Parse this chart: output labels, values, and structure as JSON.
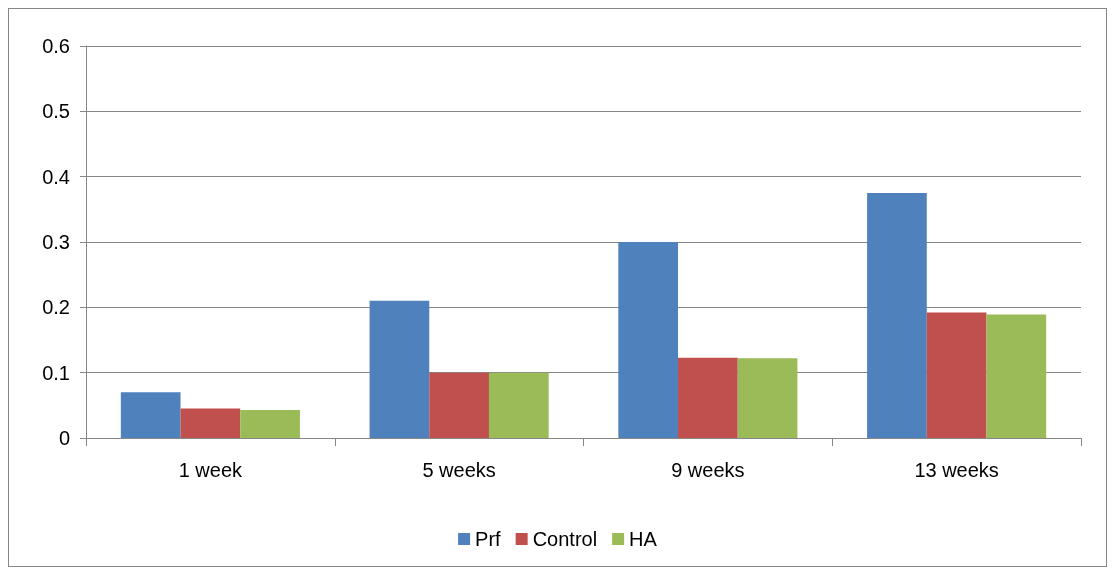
{
  "chart_data": {
    "type": "bar",
    "categories": [
      "1 week",
      "5 weeks",
      "9 weeks",
      "13 weeks"
    ],
    "series": [
      {
        "name": "Prf",
        "color": "#4f81bd",
        "values": [
          0.07,
          0.21,
          0.3,
          0.375
        ]
      },
      {
        "name": "Control",
        "color": "#c0504d",
        "values": [
          0.045,
          0.1,
          0.123,
          0.192
        ]
      },
      {
        "name": "HA",
        "color": "#9bbb59",
        "values": [
          0.043,
          0.1,
          0.122,
          0.189
        ]
      }
    ],
    "ylim": [
      0,
      0.6
    ],
    "yticks": [
      0,
      0.1,
      0.2,
      0.3,
      0.4,
      0.5,
      0.6
    ],
    "grid": "y",
    "legend": "bottom"
  }
}
